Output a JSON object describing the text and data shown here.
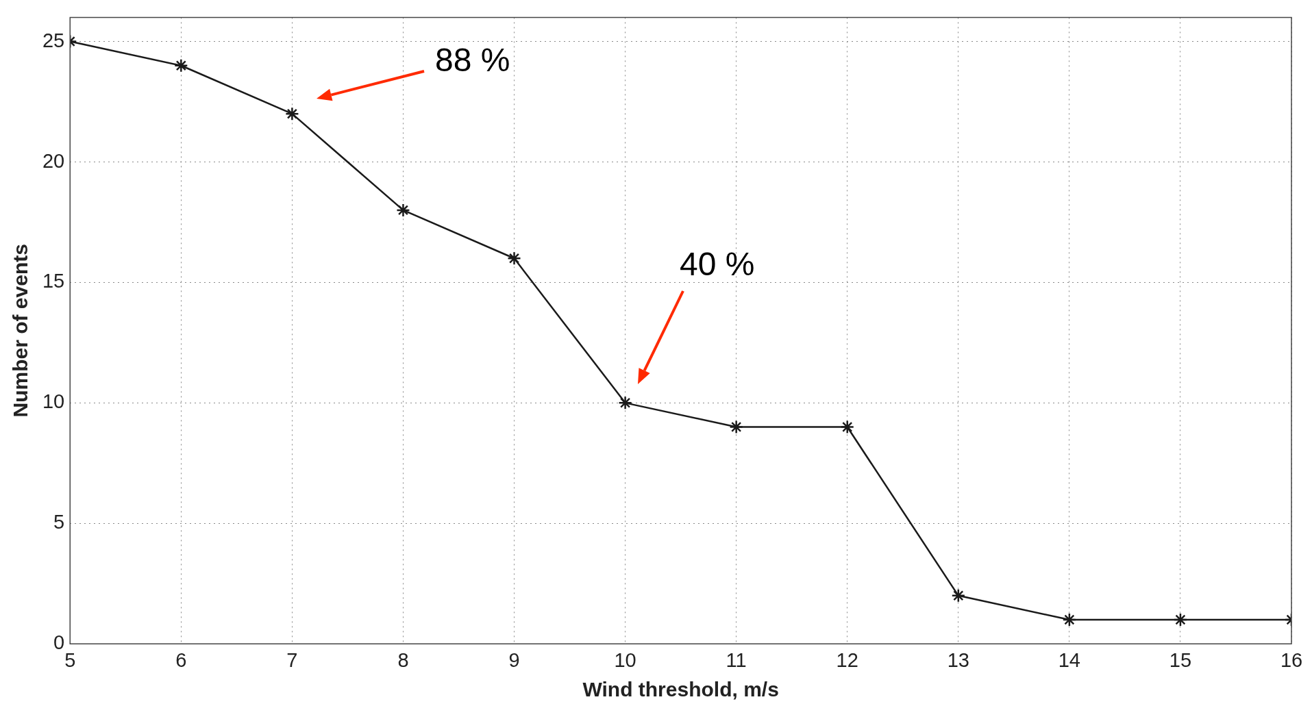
{
  "chart_data": {
    "type": "line",
    "xlabel": "Wind threshold, m/s",
    "ylabel": "Number of events",
    "x": [
      5,
      6,
      7,
      8,
      9,
      10,
      11,
      12,
      13,
      14,
      15,
      16
    ],
    "series": [
      {
        "color": "#1a1a1a",
        "values": [
          25,
          24,
          22,
          18,
          16,
          10,
          9,
          9,
          2,
          1,
          1,
          1
        ]
      }
    ],
    "xlim": [
      5,
      16
    ],
    "xticks": [
      5,
      6,
      7,
      8,
      9,
      10,
      11,
      12,
      13,
      14,
      15,
      16
    ],
    "ylim": [
      0,
      26
    ],
    "yticks": [
      0,
      5,
      10,
      15,
      20,
      25
    ],
    "grid": true,
    "legend": false,
    "marker": "cross",
    "line_style": "solid",
    "annotations": [
      "88 %",
      "40 %"
    ]
  }
}
